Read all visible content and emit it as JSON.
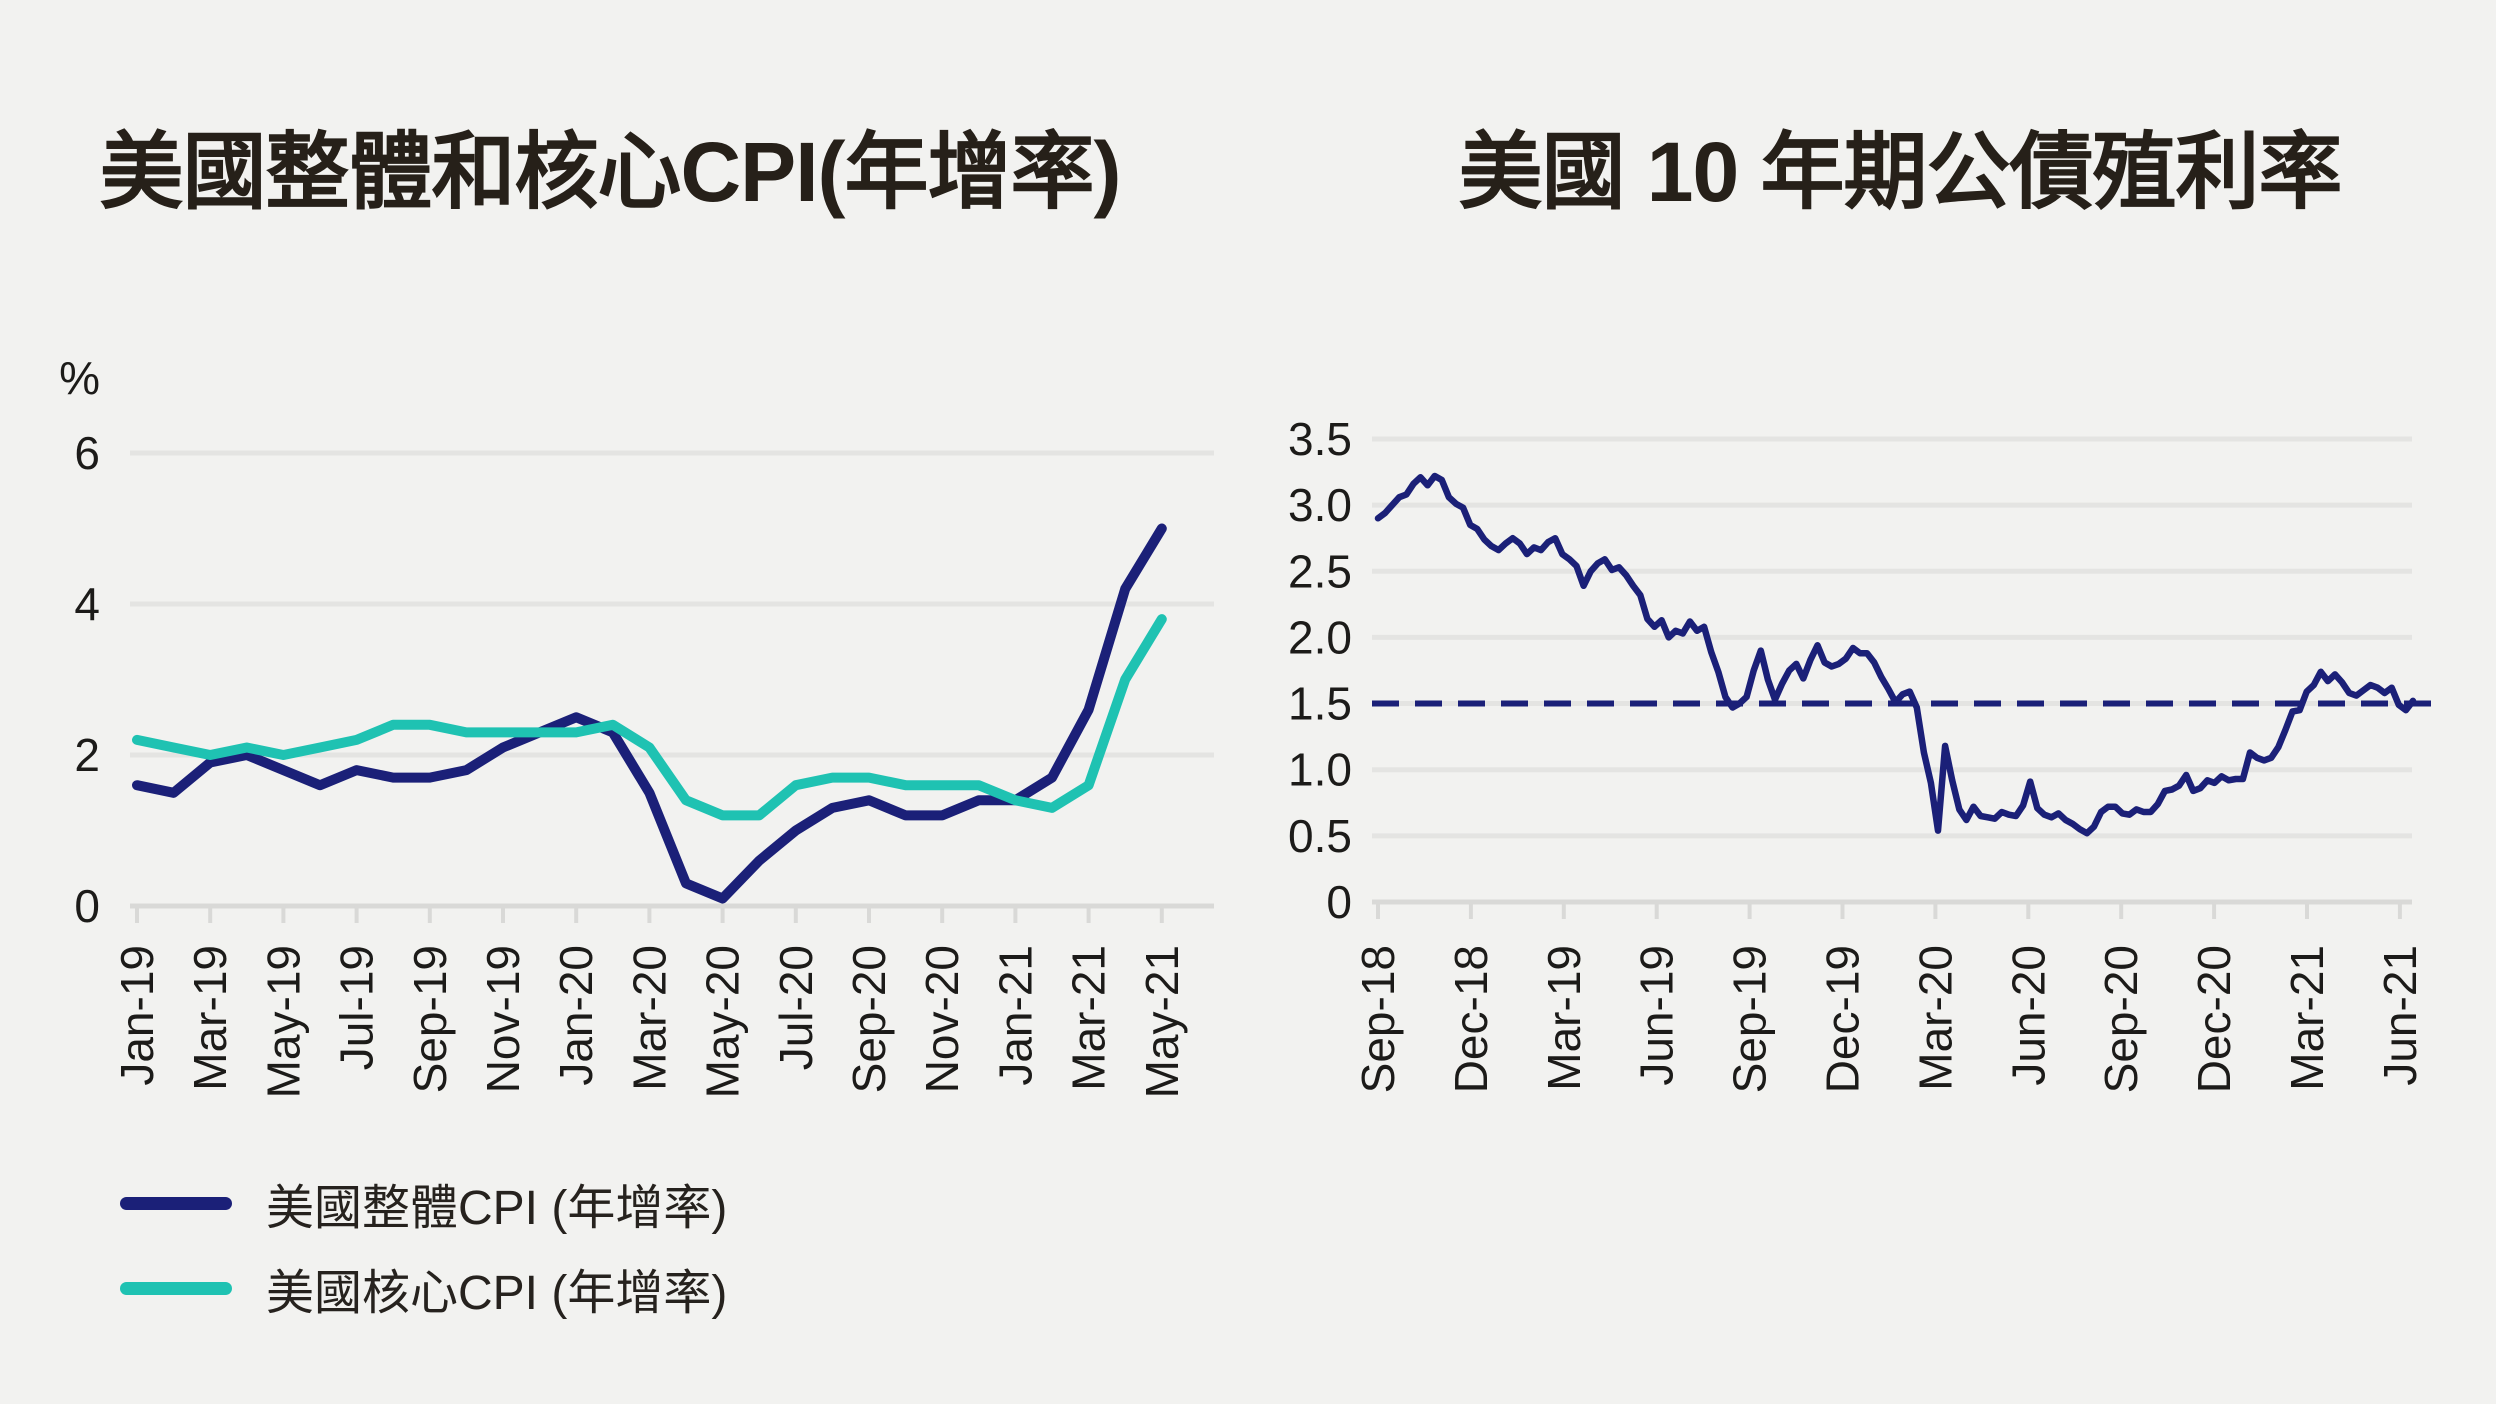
{
  "theme": {
    "background": "#F2F2F0",
    "gridline_color": "#E4E4E2",
    "axis_color": "#D9D9D7",
    "text_color": "#1C1B19",
    "navy": "#1B2078",
    "teal": "#1FC2B2"
  },
  "chart_data": [
    {
      "type": "line",
      "title": "美國整體和核心CPI(年增率)",
      "ylabel": "%",
      "ylim": [
        0,
        6
      ],
      "y_ticks": [
        0,
        2,
        4,
        6
      ],
      "y_tick_labels": [
        "0",
        "2",
        "4",
        "6"
      ],
      "grid": "horizontal",
      "legend_position": "bottom-left",
      "categories": [
        "Jan-19",
        "Feb-19",
        "Mar-19",
        "Apr-19",
        "May-19",
        "Jun-19",
        "Jul-19",
        "Aug-19",
        "Sep-19",
        "Oct-19",
        "Nov-19",
        "Dec-19",
        "Jan-20",
        "Feb-20",
        "Mar-20",
        "Apr-20",
        "May-20",
        "Jun-20",
        "Jul-20",
        "Aug-20",
        "Sep-20",
        "Oct-20",
        "Nov-20",
        "Dec-20",
        "Jan-21",
        "Feb-21",
        "Mar-21",
        "Apr-21",
        "May-21"
      ],
      "x_tick_labels": [
        "Jan-19",
        "Mar-19",
        "May-19",
        "Jul-19",
        "Sep-19",
        "Nov-19",
        "Jan-20",
        "Mar-20",
        "May-20",
        "Jul-20",
        "Sep-20",
        "Nov-20",
        "Jan-21",
        "Mar-21",
        "May-21"
      ],
      "series": [
        {
          "name": "美國整體CPI (年增率)",
          "color": "#1B2078",
          "values": [
            1.6,
            1.5,
            1.9,
            2.0,
            1.8,
            1.6,
            1.8,
            1.7,
            1.7,
            1.8,
            2.1,
            2.3,
            2.5,
            2.3,
            1.5,
            0.3,
            0.1,
            0.6,
            1.0,
            1.3,
            1.4,
            1.2,
            1.2,
            1.4,
            1.4,
            1.7,
            2.6,
            4.2,
            5.0
          ]
        },
        {
          "name": "美國核心CPI (年增率)",
          "color": "#1FC2B2",
          "values": [
            2.2,
            2.1,
            2.0,
            2.1,
            2.0,
            2.1,
            2.2,
            2.4,
            2.4,
            2.3,
            2.3,
            2.3,
            2.3,
            2.4,
            2.1,
            1.4,
            1.2,
            1.2,
            1.6,
            1.7,
            1.7,
            1.6,
            1.6,
            1.6,
            1.4,
            1.3,
            1.6,
            3.0,
            3.8
          ]
        }
      ]
    },
    {
      "type": "line",
      "title": "美國 10 年期公債殖利率",
      "ylim": [
        0,
        3.5
      ],
      "y_ticks": [
        3.5,
        3.0,
        2.5,
        2.0,
        1.5,
        1.0,
        0.5,
        0
      ],
      "y_tick_labels": [
        "3.5",
        "3.0",
        "2.5",
        "2.0",
        "1.5",
        "1.0",
        "0.5",
        "0"
      ],
      "grid": "horizontal",
      "x_tick_labels": [
        "Sep-18",
        "Dec-18",
        "Mar-19",
        "Jun-19",
        "Sep-19",
        "Dec-19",
        "Mar-20",
        "Jun-20",
        "Sep-20",
        "Dec-20",
        "Mar-21",
        "Jun-21"
      ],
      "x_range_note": "weekly values, Sep-2018 to Jun-2021",
      "reference_line": {
        "value": 1.5,
        "style": "dashed",
        "color": "#1B2078"
      },
      "series": [
        {
          "name": "美國10年期公債殖利率",
          "color": "#1B2078",
          "values": [
            2.9,
            2.94,
            3.0,
            3.06,
            3.08,
            3.16,
            3.21,
            3.15,
            3.22,
            3.19,
            3.06,
            3.01,
            2.98,
            2.85,
            2.82,
            2.74,
            2.69,
            2.66,
            2.71,
            2.75,
            2.71,
            2.63,
            2.68,
            2.66,
            2.72,
            2.75,
            2.63,
            2.59,
            2.54,
            2.39,
            2.5,
            2.56,
            2.59,
            2.51,
            2.53,
            2.47,
            2.39,
            2.32,
            2.14,
            2.08,
            2.13,
            2.0,
            2.05,
            2.03,
            2.12,
            2.05,
            2.08,
            1.89,
            1.74,
            1.55,
            1.47,
            1.5,
            1.55,
            1.75,
            1.9,
            1.68,
            1.53,
            1.65,
            1.75,
            1.8,
            1.69,
            1.83,
            1.94,
            1.81,
            1.78,
            1.8,
            1.84,
            1.92,
            1.88,
            1.88,
            1.81,
            1.7,
            1.61,
            1.51,
            1.57,
            1.59,
            1.47,
            1.13,
            0.9,
            0.54,
            1.18,
            0.92,
            0.7,
            0.62,
            0.72,
            0.65,
            0.64,
            0.63,
            0.68,
            0.66,
            0.65,
            0.73,
            0.91,
            0.71,
            0.66,
            0.64,
            0.67,
            0.62,
            0.59,
            0.55,
            0.52,
            0.57,
            0.68,
            0.72,
            0.72,
            0.67,
            0.66,
            0.7,
            0.68,
            0.68,
            0.74,
            0.84,
            0.85,
            0.88,
            0.96,
            0.84,
            0.86,
            0.92,
            0.9,
            0.95,
            0.92,
            0.93,
            0.93,
            1.13,
            1.09,
            1.07,
            1.09,
            1.17,
            1.3,
            1.44,
            1.45,
            1.59,
            1.64,
            1.74,
            1.67,
            1.72,
            1.66,
            1.58,
            1.56,
            1.6,
            1.64,
            1.62,
            1.58,
            1.62,
            1.49,
            1.45,
            1.52
          ]
        }
      ]
    }
  ]
}
